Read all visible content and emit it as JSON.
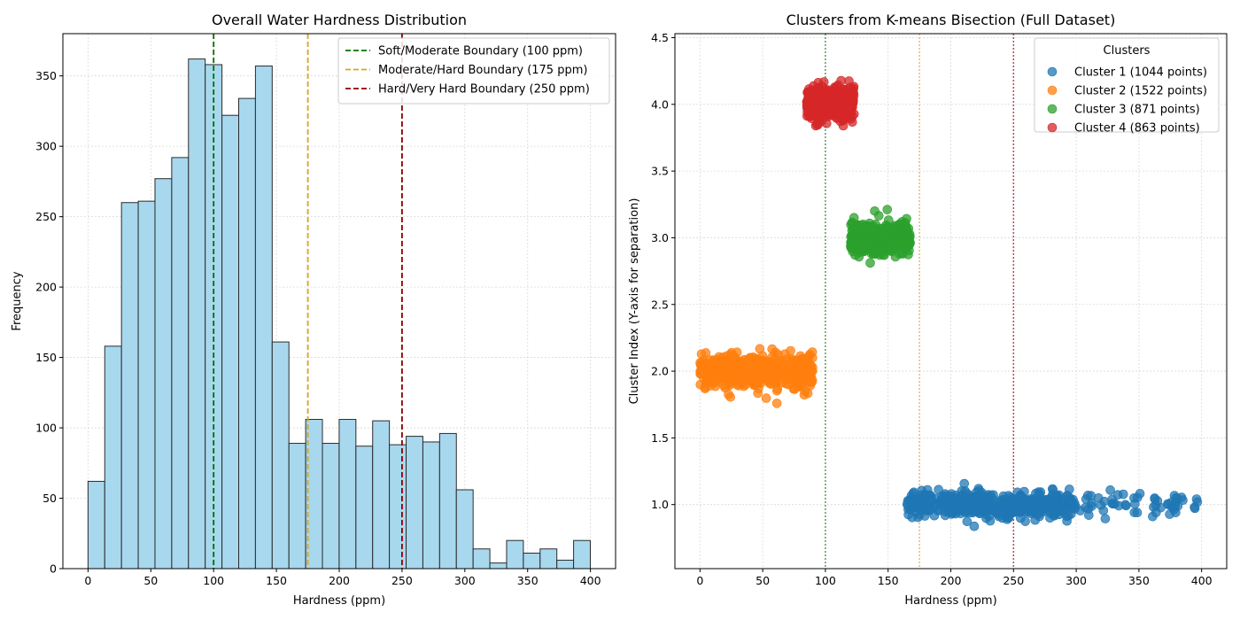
{
  "chart_data": [
    {
      "type": "bar",
      "title": "Overall Water Hardness Distribution",
      "xlabel": "Hardness (ppm)",
      "ylabel": "Frequency",
      "xlim": [
        -20,
        420
      ],
      "ylim": [
        0,
        380
      ],
      "xticks": [
        0,
        50,
        100,
        150,
        200,
        250,
        300,
        350,
        400
      ],
      "yticks": [
        0,
        50,
        100,
        150,
        200,
        250,
        300,
        350
      ],
      "grid": true,
      "legend_position": "top-right",
      "bin_start": 0,
      "bin_width": 13.33,
      "bar_color": "#a8d8ee",
      "values": [
        62,
        158,
        260,
        261,
        277,
        292,
        362,
        358,
        322,
        334,
        357,
        161,
        89,
        106,
        89,
        106,
        87,
        105,
        88,
        94,
        90,
        96,
        56,
        14,
        4,
        20,
        11,
        14,
        6,
        20
      ],
      "reference_lines": [
        {
          "x": 100,
          "label": "Soft/Moderate Boundary (100 ppm)",
          "color": "#007000"
        },
        {
          "x": 175,
          "label": "Moderate/Hard Boundary (175 ppm)",
          "color": "#daa520"
        },
        {
          "x": 250,
          "label": "Hard/Very Hard Boundary (250 ppm)",
          "color": "#8b0000"
        }
      ]
    },
    {
      "type": "scatter",
      "title": "Clusters from K-means Bisection (Full Dataset)",
      "xlabel": "Hardness (ppm)",
      "ylabel": "Cluster Index (Y-axis for separation)",
      "xlim": [
        -20,
        420
      ],
      "ylim": [
        0.52,
        4.53
      ],
      "xticks": [
        0,
        50,
        100,
        150,
        200,
        250,
        300,
        350,
        400
      ],
      "yticks": [
        1.0,
        1.5,
        2.0,
        2.5,
        3.0,
        3.5,
        4.0,
        4.5
      ],
      "grid": true,
      "legend_title": "Clusters",
      "legend_position": "top-right",
      "reference_lines": [
        {
          "x": 100,
          "color": "#5a9a5a"
        },
        {
          "x": 175,
          "color": "#e8b878"
        },
        {
          "x": 250,
          "color": "#b05050"
        }
      ],
      "series": [
        {
          "name": "Cluster 1 (1044 points)",
          "color": "#1f77b4",
          "y_center": 1.0,
          "x_range": [
            165,
            400
          ],
          "spread": 0.08
        },
        {
          "name": "Cluster 2 (1522 points)",
          "color": "#ff7f0e",
          "y_center": 2.0,
          "x_range": [
            0,
            90
          ],
          "spread": 0.1
        },
        {
          "name": "Cluster 3 (871 points)",
          "color": "#2ca02c",
          "y_center": 3.0,
          "x_range": [
            120,
            168
          ],
          "spread": 0.1
        },
        {
          "name": "Cluster 4 (863 points)",
          "color": "#d62728",
          "y_center": 4.0,
          "x_range": [
            85,
            123
          ],
          "spread": 0.1
        }
      ]
    }
  ]
}
